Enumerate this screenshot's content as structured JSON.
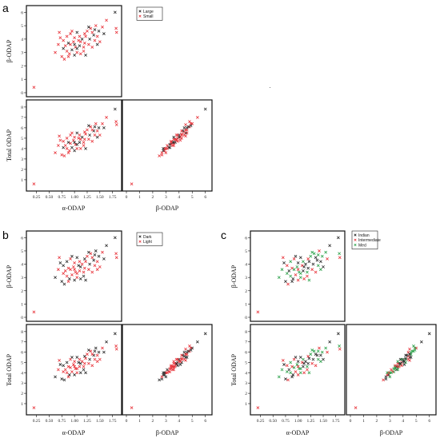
{
  "panels": {
    "a": {
      "letter": "a",
      "legend": [
        {
          "label": "Large",
          "color": "#2b2b2b"
        },
        {
          "label": "Small",
          "color": "#e8343b"
        }
      ]
    },
    "b": {
      "letter": "b",
      "legend": [
        {
          "label": "Dark",
          "color": "#2b2b2b"
        },
        {
          "label": "Light",
          "color": "#e8343b"
        }
      ]
    },
    "c": {
      "letter": "c",
      "legend": [
        {
          "label": "Indian",
          "color": "#2b2b2b"
        },
        {
          "label": "Intermediate",
          "color": "#e8343b"
        },
        {
          "label": "Med",
          "color": "#2ca24a"
        }
      ]
    }
  },
  "axes": {
    "alpha_odap": {
      "label": "α-ODAP",
      "ticks": [
        "0.25",
        "0.50",
        "0.75",
        "1.00",
        "1.25",
        "1.50",
        "1.75"
      ],
      "range": [
        0.13,
        1.85
      ]
    },
    "beta_odap": {
      "label": "β-ODAP",
      "ticks": [
        "0",
        "1",
        "2",
        "3",
        "4",
        "5",
        "6"
      ],
      "range": [
        0,
        6.2
      ]
    },
    "total_odap": {
      "label": "Total ODAP",
      "ticks": [
        "1",
        "2",
        "3",
        "4",
        "5",
        "6",
        "7",
        "8"
      ],
      "range": [
        0.3,
        8.3
      ]
    }
  },
  "chart_data": {
    "type": "scatter",
    "variables": [
      "α-ODAP",
      "β-ODAP",
      "Total ODAP"
    ],
    "points": [
      [
        0.2,
        0.4,
        0.6
      ],
      [
        1.8,
        6.0,
        7.8
      ],
      [
        1.82,
        4.8,
        6.6
      ],
      [
        1.83,
        4.5,
        6.3
      ],
      [
        1.63,
        5.4,
        7.0
      ],
      [
        0.62,
        3.0,
        3.6
      ],
      [
        0.7,
        4.5,
        5.2
      ],
      [
        0.72,
        4.1,
        4.8
      ],
      [
        0.78,
        3.3,
        4.1
      ],
      [
        0.8,
        2.5,
        3.3
      ],
      [
        0.82,
        3.5,
        4.3
      ],
      [
        0.85,
        4.2,
        5.0
      ],
      [
        0.88,
        3.7,
        4.6
      ],
      [
        0.9,
        2.9,
        3.8
      ],
      [
        0.92,
        3.6,
        4.5
      ],
      [
        0.95,
        3.2,
        4.1
      ],
      [
        0.95,
        4.6,
        5.5
      ],
      [
        0.98,
        3.8,
        4.8
      ],
      [
        1.0,
        2.8,
        3.8
      ],
      [
        1.0,
        4.1,
        5.1
      ],
      [
        1.02,
        3.4,
        4.4
      ],
      [
        1.05,
        4.5,
        5.5
      ],
      [
        1.05,
        3.0,
        4.0
      ],
      [
        1.08,
        3.9,
        5.0
      ],
      [
        1.1,
        3.5,
        4.6
      ],
      [
        1.1,
        4.2,
        5.3
      ],
      [
        1.12,
        2.9,
        4.0
      ],
      [
        1.15,
        4.0,
        5.1
      ],
      [
        1.18,
        3.4,
        4.6
      ],
      [
        1.2,
        4.4,
        5.6
      ],
      [
        1.2,
        3.7,
        4.9
      ],
      [
        1.22,
        2.8,
        4.0
      ],
      [
        1.25,
        4.6,
        5.8
      ],
      [
        1.28,
        3.6,
        4.9
      ],
      [
        1.3,
        4.0,
        5.3
      ],
      [
        1.32,
        4.8,
        6.1
      ],
      [
        1.35,
        3.4,
        4.7
      ],
      [
        1.38,
        4.3,
        5.7
      ],
      [
        1.4,
        3.9,
        5.3
      ],
      [
        1.42,
        5.0,
        6.4
      ],
      [
        1.45,
        4.2,
        5.7
      ],
      [
        1.48,
        4.6,
        6.0
      ],
      [
        1.5,
        3.8,
        5.3
      ],
      [
        1.55,
        4.9,
        6.4
      ],
      [
        1.58,
        4.4,
        6.0
      ],
      [
        0.75,
        2.7,
        3.4
      ],
      [
        0.85,
        3.1,
        4.0
      ],
      [
        1.0,
        3.6,
        4.6
      ],
      [
        1.12,
        3.8,
        4.9
      ],
      [
        0.68,
        3.6,
        4.3
      ],
      [
        0.92,
        4.4,
        5.3
      ],
      [
        1.28,
        4.9,
        6.2
      ],
      [
        1.35,
        4.5,
        5.8
      ],
      [
        1.45,
        3.6,
        5.1
      ],
      [
        0.78,
        3.9,
        4.7
      ],
      [
        0.88,
        2.7,
        3.6
      ],
      [
        1.05,
        3.3,
        4.4
      ],
      [
        1.18,
        3.1,
        4.3
      ],
      [
        1.22,
        4.2,
        5.4
      ],
      [
        1.4,
        4.7,
        6.1
      ]
    ],
    "groups": {
      "a": [
        "Small",
        "Large",
        "Small",
        "Small",
        "Small",
        "Small",
        "Small",
        "Small",
        "Large",
        "Small",
        "Small",
        "Small",
        "Large",
        "Small",
        "Small",
        "Large",
        "Small",
        "Small",
        "Large",
        "Small",
        "Small",
        "Large",
        "Small",
        "Small",
        "Large",
        "Small",
        "Small",
        "Large",
        "Small",
        "Small",
        "Small",
        "Large",
        "Small",
        "Small",
        "Large",
        "Small",
        "Small",
        "Large",
        "Small",
        "Small",
        "Small",
        "Large",
        "Small",
        "Small",
        "Large",
        "Small",
        "Small",
        "Large",
        "Small",
        "Small",
        "Small",
        "Large",
        "Small",
        "Large",
        "Small",
        "Small",
        "Large",
        "Small",
        "Small",
        "Large"
      ],
      "b": [
        "Light",
        "Dark",
        "Light",
        "Light",
        "Dark",
        "Dark",
        "Light",
        "Dark",
        "Light",
        "Dark",
        "Light",
        "Dark",
        "Light",
        "Dark",
        "Light",
        "Light",
        "Dark",
        "Light",
        "Dark",
        "Light",
        "Light",
        "Dark",
        "Light",
        "Dark",
        "Light",
        "Light",
        "Dark",
        "Light",
        "Light",
        "Dark",
        "Light",
        "Dark",
        "Light",
        "Light",
        "Dark",
        "Light",
        "Light",
        "Dark",
        "Light",
        "Dark",
        "Light",
        "Dark",
        "Light",
        "Light",
        "Dark",
        "Dark",
        "Light",
        "Light",
        "Dark",
        "Light",
        "Light",
        "Dark",
        "Light",
        "Light",
        "Dark",
        "Light",
        "Light",
        "Dark",
        "Light",
        "Dark"
      ],
      "c": [
        "Intermediate",
        "Indian",
        "Med",
        "Intermediate",
        "Indian",
        "Med",
        "Intermediate",
        "Indian",
        "Med",
        "Intermediate",
        "Indian",
        "Med",
        "Intermediate",
        "Indian",
        "Med",
        "Intermediate",
        "Indian",
        "Med",
        "Intermediate",
        "Indian",
        "Med",
        "Indian",
        "Med",
        "Intermediate",
        "Indian",
        "Med",
        "Intermediate",
        "Indian",
        "Med",
        "Intermediate",
        "Indian",
        "Med",
        "Med",
        "Intermediate",
        "Indian",
        "Med",
        "Intermediate",
        "Indian",
        "Med",
        "Intermediate",
        "Indian",
        "Med",
        "Indian",
        "Med",
        "Intermediate",
        "Indian",
        "Med",
        "Intermediate",
        "Indian",
        "Med",
        "Intermediate",
        "Med",
        "Indian",
        "Med",
        "Intermediate",
        "Indian",
        "Med",
        "Intermediate",
        "Indian",
        "Med"
      ]
    },
    "legend_placement": "top-right of upper-left plot",
    "grid": false
  }
}
